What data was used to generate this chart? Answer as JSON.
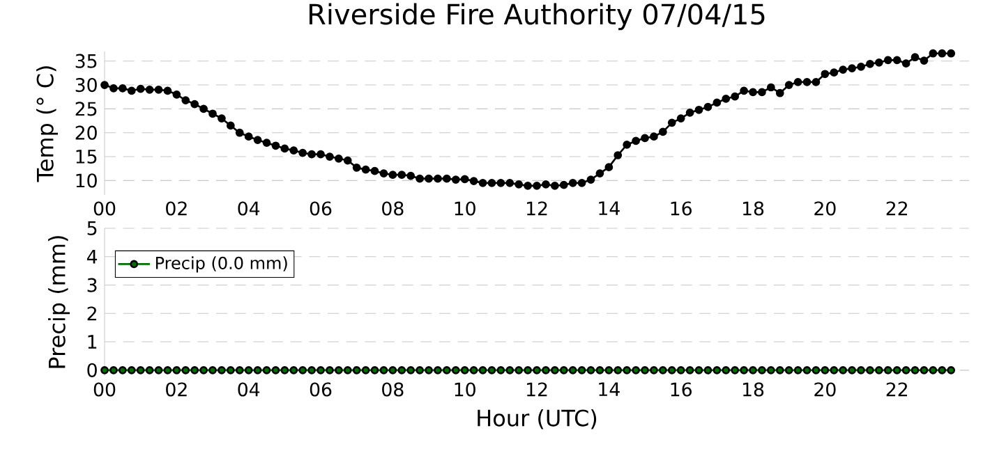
{
  "chart_data": [
    {
      "type": "line",
      "title": "Riverside Fire Authority 07/04/15",
      "ylabel": "Temp (° C)",
      "x": [
        0,
        0.25,
        0.5,
        0.75,
        1,
        1.25,
        1.5,
        1.75,
        2,
        2.25,
        2.5,
        2.75,
        3,
        3.25,
        3.5,
        3.75,
        4,
        4.25,
        4.5,
        4.75,
        5,
        5.25,
        5.5,
        5.75,
        6,
        6.25,
        6.5,
        6.75,
        7,
        7.25,
        7.5,
        7.75,
        8,
        8.25,
        8.5,
        8.75,
        9,
        9.25,
        9.5,
        9.75,
        10,
        10.25,
        10.5,
        10.75,
        11,
        11.25,
        11.5,
        11.75,
        12,
        12.25,
        12.5,
        12.75,
        13,
        13.25,
        13.5,
        13.75,
        14,
        14.25,
        14.5,
        14.75,
        15,
        15.25,
        15.5,
        15.75,
        16,
        16.25,
        16.5,
        16.75,
        17,
        17.25,
        17.5,
        17.75,
        18,
        18.25,
        18.5,
        18.75,
        19,
        19.25,
        19.5,
        19.75,
        20,
        20.25,
        20.5,
        20.75,
        21,
        21.25,
        21.5,
        21.75,
        22,
        22.25,
        22.5,
        22.75,
        23,
        23.25,
        23.5
      ],
      "values": [
        30.0,
        29.3,
        29.3,
        28.8,
        29.2,
        29.0,
        29.0,
        28.8,
        28.0,
        26.8,
        26.0,
        25.0,
        24.0,
        23.0,
        21.5,
        20.0,
        19.2,
        18.5,
        17.9,
        17.3,
        16.7,
        16.3,
        15.8,
        15.5,
        15.5,
        15.0,
        14.6,
        14.2,
        12.7,
        12.3,
        12.0,
        11.5,
        11.2,
        11.2,
        11.0,
        10.4,
        10.4,
        10.4,
        10.4,
        10.2,
        10.3,
        9.9,
        9.5,
        9.5,
        9.5,
        9.5,
        9.2,
        8.9,
        8.9,
        9.2,
        8.9,
        9.1,
        9.5,
        9.5,
        10.2,
        11.5,
        12.8,
        15.3,
        17.5,
        18.3,
        18.9,
        19.2,
        20.2,
        22.1,
        23.0,
        24.2,
        24.8,
        25.4,
        26.3,
        27.1,
        27.6,
        28.8,
        28.5,
        28.5,
        29.5,
        28.3,
        30.0,
        30.6,
        30.6,
        30.6,
        32.3,
        32.6,
        33.2,
        33.5,
        33.8,
        34.4,
        34.7,
        35.2,
        35.2,
        34.5,
        35.8,
        35.1,
        36.6,
        36.6,
        36.6
      ],
      "color": "#000000",
      "marker": "circle",
      "line_style": "solid",
      "grid": "y",
      "xlim": [
        0,
        24
      ],
      "ylim": [
        7,
        37
      ],
      "xticks": [
        {
          "value": 0,
          "label": "00"
        },
        {
          "value": 2,
          "label": "02"
        },
        {
          "value": 4,
          "label": "04"
        },
        {
          "value": 6,
          "label": "06"
        },
        {
          "value": 8,
          "label": "08"
        },
        {
          "value": 10,
          "label": "10"
        },
        {
          "value": 12,
          "label": "12"
        },
        {
          "value": 14,
          "label": "14"
        },
        {
          "value": 16,
          "label": "16"
        },
        {
          "value": 18,
          "label": "18"
        },
        {
          "value": 20,
          "label": "20"
        },
        {
          "value": 22,
          "label": "22"
        }
      ],
      "yticks": [
        10,
        15,
        20,
        25,
        30,
        35
      ]
    },
    {
      "type": "line",
      "xlabel": "Hour (UTC)",
      "ylabel": "Precip (mm)",
      "x": [
        0,
        0.25,
        0.5,
        0.75,
        1,
        1.25,
        1.5,
        1.75,
        2,
        2.25,
        2.5,
        2.75,
        3,
        3.25,
        3.5,
        3.75,
        4,
        4.25,
        4.5,
        4.75,
        5,
        5.25,
        5.5,
        5.75,
        6,
        6.25,
        6.5,
        6.75,
        7,
        7.25,
        7.5,
        7.75,
        8,
        8.25,
        8.5,
        8.75,
        9,
        9.25,
        9.5,
        9.75,
        10,
        10.25,
        10.5,
        10.75,
        11,
        11.25,
        11.5,
        11.75,
        12,
        12.25,
        12.5,
        12.75,
        13,
        13.25,
        13.5,
        13.75,
        14,
        14.25,
        14.5,
        14.75,
        15,
        15.25,
        15.5,
        15.75,
        16,
        16.25,
        16.5,
        16.75,
        17,
        17.25,
        17.5,
        17.75,
        18,
        18.25,
        18.5,
        18.75,
        19,
        19.25,
        19.5,
        19.75,
        20,
        20.25,
        20.5,
        20.75,
        21,
        21.25,
        21.5,
        21.75,
        22,
        22.25,
        22.5,
        22.75,
        23,
        23.25,
        23.5
      ],
      "series": [
        {
          "name": "Precip (0.0 mm)",
          "color": "#006f00",
          "values": [
            0,
            0,
            0,
            0,
            0,
            0,
            0,
            0,
            0,
            0,
            0,
            0,
            0,
            0,
            0,
            0,
            0,
            0,
            0,
            0,
            0,
            0,
            0,
            0,
            0,
            0,
            0,
            0,
            0,
            0,
            0,
            0,
            0,
            0,
            0,
            0,
            0,
            0,
            0,
            0,
            0,
            0,
            0,
            0,
            0,
            0,
            0,
            0,
            0,
            0,
            0,
            0,
            0,
            0,
            0,
            0,
            0,
            0,
            0,
            0,
            0,
            0,
            0,
            0,
            0,
            0,
            0,
            0,
            0,
            0,
            0,
            0,
            0,
            0,
            0,
            0,
            0,
            0,
            0,
            0,
            0,
            0,
            0,
            0,
            0,
            0,
            0,
            0,
            0,
            0,
            0,
            0,
            0,
            0,
            0
          ]
        }
      ],
      "marker": "circle",
      "line_style": "solid",
      "grid": "y",
      "legend": "top left",
      "xlim": [
        0,
        24
      ],
      "ylim": [
        -0.2,
        5
      ],
      "xticks": [
        {
          "value": 0,
          "label": "00"
        },
        {
          "value": 2,
          "label": "02"
        },
        {
          "value": 4,
          "label": "04"
        },
        {
          "value": 6,
          "label": "06"
        },
        {
          "value": 8,
          "label": "08"
        },
        {
          "value": 10,
          "label": "10"
        },
        {
          "value": 12,
          "label": "12"
        },
        {
          "value": 14,
          "label": "14"
        },
        {
          "value": 16,
          "label": "16"
        },
        {
          "value": 18,
          "label": "18"
        },
        {
          "value": 20,
          "label": "20"
        },
        {
          "value": 22,
          "label": "22"
        }
      ],
      "yticks": [
        0,
        1,
        2,
        3,
        4,
        5
      ]
    }
  ]
}
